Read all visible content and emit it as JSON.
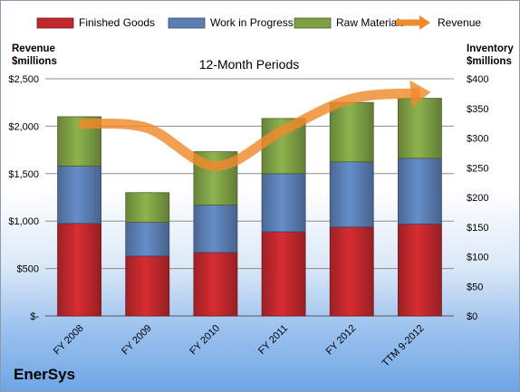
{
  "chart_data": {
    "type": "bar",
    "subtitle": "12-Month Periods",
    "categories": [
      "FY 2008",
      "FY 2009",
      "FY 2010",
      "FY 2011",
      "FY 2012",
      "TTM 9-2012"
    ],
    "stacked": true,
    "series": [
      {
        "name": "Finished Goods",
        "axis": "right",
        "color": "#c0282d",
        "values": [
          156,
          101,
          107,
          142,
          150,
          155
        ]
      },
      {
        "name": "Work in Progress",
        "axis": "right",
        "color": "#5b7fb4",
        "values": [
          97,
          57,
          80,
          98,
          110,
          111
        ]
      },
      {
        "name": "Raw Materials",
        "axis": "right",
        "color": "#7fa045",
        "values": [
          83,
          50,
          90,
          93,
          100,
          101
        ]
      },
      {
        "name": "Revenue",
        "axis": "left",
        "type": "line",
        "color": "#f08a2c",
        "values": [
          2026,
          1980,
          1580,
          1960,
          2290,
          2350
        ]
      }
    ],
    "ylabel_left": "Revenue $millions",
    "ylabel_right": "Inventory $millions",
    "ylim_left": [
      0,
      2500
    ],
    "ylim_right": [
      0,
      400
    ],
    "yticks_left": [
      "$-",
      "$500",
      "$1,000",
      "$1,500",
      "$2,000",
      "$2,500"
    ],
    "yticks_right": [
      "$0",
      "$50",
      "$100",
      "$150",
      "$200",
      "$250",
      "$300",
      "$350",
      "$400"
    ],
    "grid": true,
    "legend": "top"
  },
  "brand": "EnerSys"
}
